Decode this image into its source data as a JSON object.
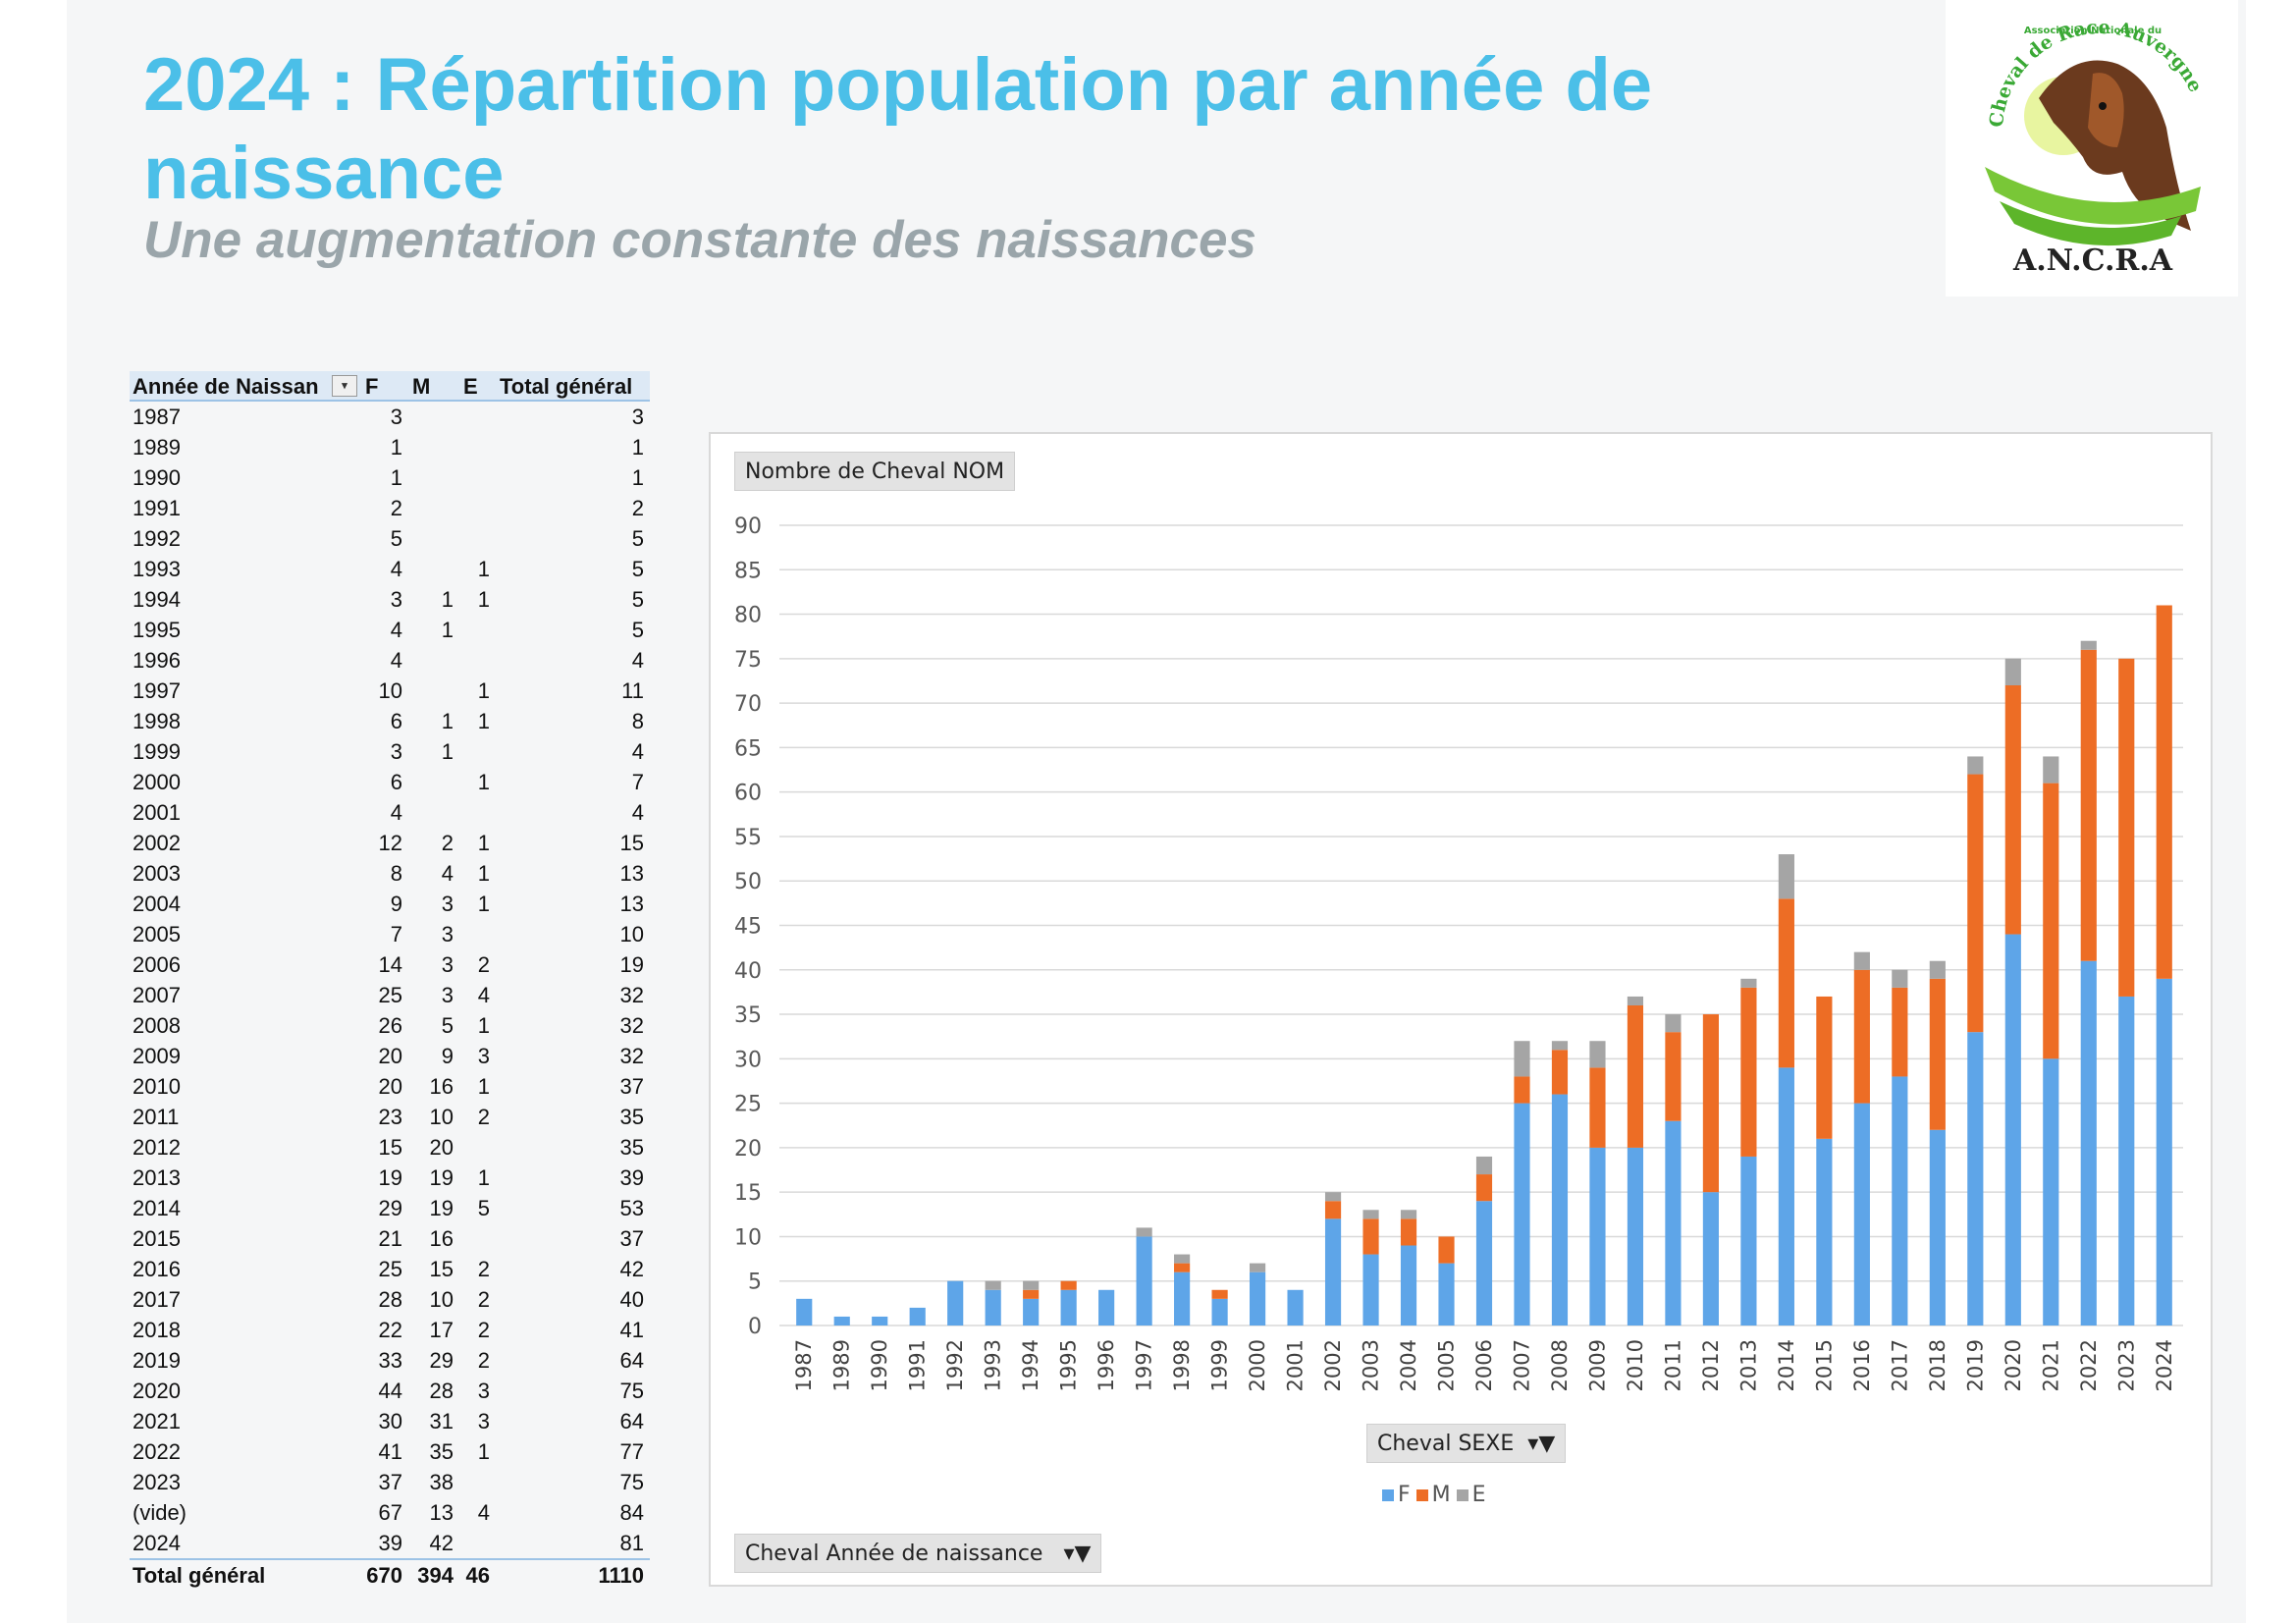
{
  "header": {
    "title": "2024 : Répartition population par année de naissance",
    "subtitle": "Une augmentation constante des naissances"
  },
  "logo": {
    "top_text": "Association Nationale du",
    "arc_text": "Cheval de Race Auvergne",
    "bottom_text": "A.N.C.R.A"
  },
  "pivot": {
    "headers": [
      "Année de Naissan",
      "F",
      "M",
      "E",
      "Total général"
    ],
    "rows": [
      [
        "1987",
        "3",
        "",
        "",
        "3"
      ],
      [
        "1989",
        "1",
        "",
        "",
        "1"
      ],
      [
        "1990",
        "1",
        "",
        "",
        "1"
      ],
      [
        "1991",
        "2",
        "",
        "",
        "2"
      ],
      [
        "1992",
        "5",
        "",
        "",
        "5"
      ],
      [
        "1993",
        "4",
        "",
        "1",
        "5"
      ],
      [
        "1994",
        "3",
        "1",
        "1",
        "5"
      ],
      [
        "1995",
        "4",
        "1",
        "",
        "5"
      ],
      [
        "1996",
        "4",
        "",
        "",
        "4"
      ],
      [
        "1997",
        "10",
        "",
        "1",
        "11"
      ],
      [
        "1998",
        "6",
        "1",
        "1",
        "8"
      ],
      [
        "1999",
        "3",
        "1",
        "",
        "4"
      ],
      [
        "2000",
        "6",
        "",
        "1",
        "7"
      ],
      [
        "2001",
        "4",
        "",
        "",
        "4"
      ],
      [
        "2002",
        "12",
        "2",
        "1",
        "15"
      ],
      [
        "2003",
        "8",
        "4",
        "1",
        "13"
      ],
      [
        "2004",
        "9",
        "3",
        "1",
        "13"
      ],
      [
        "2005",
        "7",
        "3",
        "",
        "10"
      ],
      [
        "2006",
        "14",
        "3",
        "2",
        "19"
      ],
      [
        "2007",
        "25",
        "3",
        "4",
        "32"
      ],
      [
        "2008",
        "26",
        "5",
        "1",
        "32"
      ],
      [
        "2009",
        "20",
        "9",
        "3",
        "32"
      ],
      [
        "2010",
        "20",
        "16",
        "1",
        "37"
      ],
      [
        "2011",
        "23",
        "10",
        "2",
        "35"
      ],
      [
        "2012",
        "15",
        "20",
        "",
        "35"
      ],
      [
        "2013",
        "19",
        "19",
        "1",
        "39"
      ],
      [
        "2014",
        "29",
        "19",
        "5",
        "53"
      ],
      [
        "2015",
        "21",
        "16",
        "",
        "37"
      ],
      [
        "2016",
        "25",
        "15",
        "2",
        "42"
      ],
      [
        "2017",
        "28",
        "10",
        "2",
        "40"
      ],
      [
        "2018",
        "22",
        "17",
        "2",
        "41"
      ],
      [
        "2019",
        "33",
        "29",
        "2",
        "64"
      ],
      [
        "2020",
        "44",
        "28",
        "3",
        "75"
      ],
      [
        "2021",
        "30",
        "31",
        "3",
        "64"
      ],
      [
        "2022",
        "41",
        "35",
        "1",
        "77"
      ],
      [
        "2023",
        "37",
        "38",
        "",
        "75"
      ],
      [
        "(vide)",
        "67",
        "13",
        "4",
        "84"
      ],
      [
        "2024",
        "39",
        "42",
        "",
        "81"
      ]
    ],
    "total": [
      "Total général",
      "670",
      "394",
      "46",
      "1110"
    ]
  },
  "chart_controls": {
    "value_field": "Nombre de Cheval NOM",
    "legend_field": "Cheval SEXE",
    "axis_field": "Cheval Année de naissance"
  },
  "chart_data": {
    "type": "bar",
    "stacked": true,
    "categories": [
      "1987",
      "1989",
      "1990",
      "1991",
      "1992",
      "1993",
      "1994",
      "1995",
      "1996",
      "1997",
      "1998",
      "1999",
      "2000",
      "2001",
      "2002",
      "2003",
      "2004",
      "2005",
      "2006",
      "2007",
      "2008",
      "2009",
      "2010",
      "2011",
      "2012",
      "2013",
      "2014",
      "2015",
      "2016",
      "2017",
      "2018",
      "2019",
      "2020",
      "2021",
      "2022",
      "2023",
      "2024"
    ],
    "series": [
      {
        "name": "F",
        "color": "#5ea5e8",
        "values": [
          3,
          1,
          1,
          2,
          5,
          4,
          3,
          4,
          4,
          10,
          6,
          3,
          6,
          4,
          12,
          8,
          9,
          7,
          14,
          25,
          26,
          20,
          20,
          23,
          15,
          19,
          29,
          21,
          25,
          28,
          22,
          33,
          44,
          30,
          41,
          37,
          39
        ]
      },
      {
        "name": "M",
        "color": "#ed6d25",
        "values": [
          0,
          0,
          0,
          0,
          0,
          0,
          1,
          1,
          0,
          0,
          1,
          1,
          0,
          0,
          2,
          4,
          3,
          3,
          3,
          3,
          5,
          9,
          16,
          10,
          20,
          19,
          19,
          16,
          15,
          10,
          17,
          29,
          28,
          31,
          35,
          38,
          42
        ]
      },
      {
        "name": "E",
        "color": "#a5a5a5",
        "values": [
          0,
          0,
          0,
          0,
          0,
          1,
          1,
          0,
          0,
          1,
          1,
          0,
          1,
          0,
          1,
          1,
          1,
          0,
          2,
          4,
          1,
          3,
          1,
          2,
          0,
          1,
          5,
          0,
          2,
          2,
          2,
          2,
          3,
          3,
          1,
          0,
          0
        ]
      }
    ],
    "ylim": [
      0,
      90
    ],
    "yticks": [
      0,
      5,
      10,
      15,
      20,
      25,
      30,
      35,
      40,
      45,
      50,
      55,
      60,
      65,
      70,
      75,
      80,
      85,
      90
    ],
    "grid": true,
    "legend_position": "bottom"
  }
}
